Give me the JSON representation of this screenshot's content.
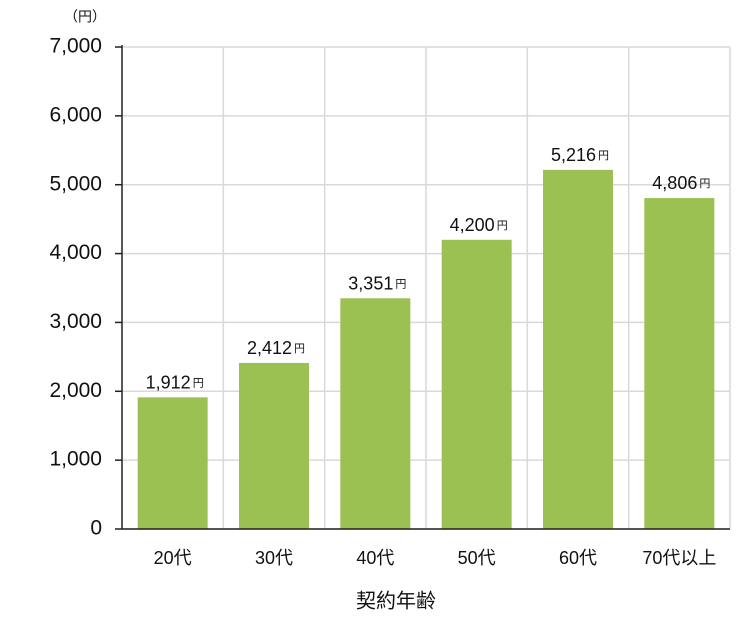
{
  "chart_data": {
    "type": "bar",
    "y_unit": "（円）",
    "x_label": "契約年齢",
    "categories": [
      "20代",
      "30代",
      "40代",
      "50代",
      "60代",
      "70代以上"
    ],
    "values": [
      1912,
      2412,
      3351,
      4200,
      5216,
      4806
    ],
    "value_labels": [
      "1,912",
      "2,412",
      "3,351",
      "4,200",
      "5,216",
      "4,806"
    ],
    "value_unit": "円",
    "color": "#9bc152",
    "ylim": [
      0,
      7000
    ],
    "yticks": [
      0,
      {
        "value": 1000,
        "label": "1,000"
      },
      {
        "value": 2000,
        "label": "2,000"
      },
      {
        "value": 3000,
        "label": "3,000"
      },
      {
        "value": 4000,
        "label": "4,000"
      },
      {
        "value": 5000,
        "label": "5,000"
      },
      {
        "value": 6000,
        "label": "6,000"
      },
      {
        "value": 7000,
        "label": "7,000"
      }
    ],
    "grid": true
  }
}
